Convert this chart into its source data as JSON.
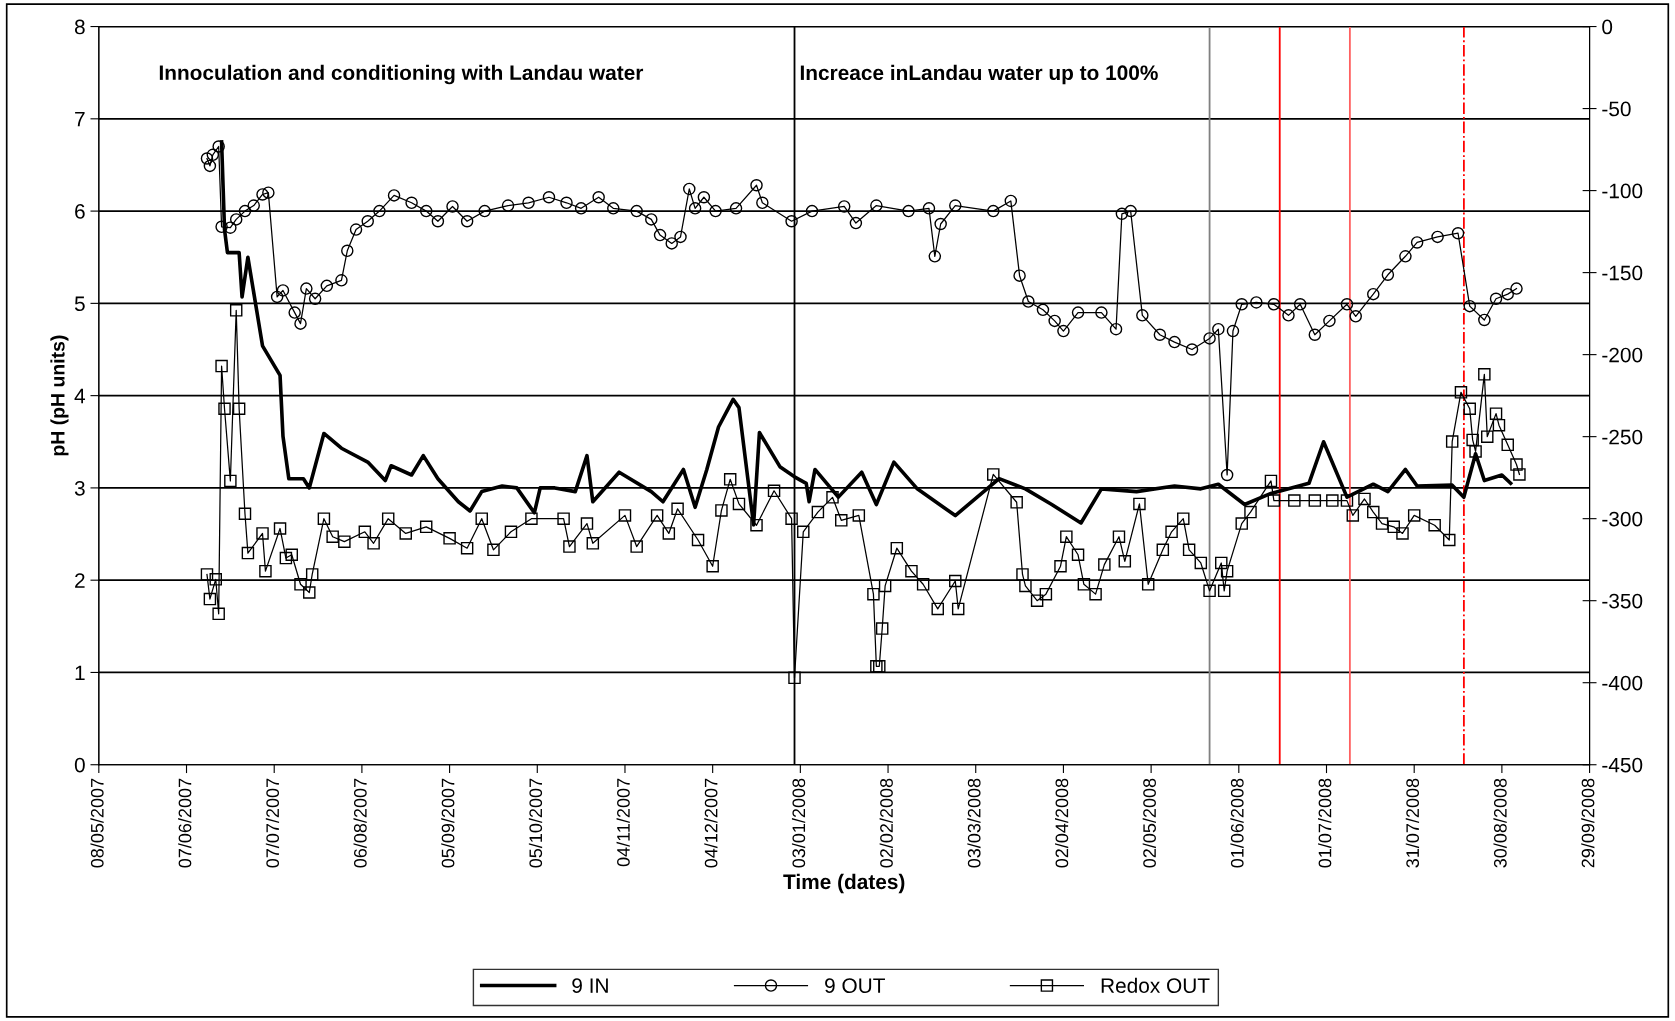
{
  "chart_data": {
    "type": "line",
    "xlabel": "Time (dates)",
    "ylabel": "pH (pH units)",
    "xlim": [
      "2007-05-08",
      "2008-09-29"
    ],
    "xticks": [
      {
        "value": "2007-05-08",
        "label": "08/05/2007"
      },
      {
        "value": "2007-06-07",
        "label": "07/06/2007"
      },
      {
        "value": "2007-07-07",
        "label": "07/07/2007"
      },
      {
        "value": "2007-08-06",
        "label": "06/08/2007"
      },
      {
        "value": "2007-09-05",
        "label": "05/09/2007"
      },
      {
        "value": "2007-10-05",
        "label": "05/10/2007"
      },
      {
        "value": "2007-11-04",
        "label": "04/11/2007"
      },
      {
        "value": "2007-12-04",
        "label": "04/12/2007"
      },
      {
        "value": "2008-01-03",
        "label": "03/01/2008"
      },
      {
        "value": "2008-02-02",
        "label": "02/02/2008"
      },
      {
        "value": "2008-03-03",
        "label": "03/03/2008"
      },
      {
        "value": "2008-04-02",
        "label": "02/04/2008"
      },
      {
        "value": "2008-05-02",
        "label": "02/05/2008"
      },
      {
        "value": "2008-06-01",
        "label": "01/06/2008"
      },
      {
        "value": "2008-07-01",
        "label": "01/07/2008"
      },
      {
        "value": "2008-07-31",
        "label": "31/07/2008"
      },
      {
        "value": "2008-08-30",
        "label": "30/08/2008"
      },
      {
        "value": "2008-09-29",
        "label": "29/09/2008"
      }
    ],
    "ylim": [
      0,
      8
    ],
    "yticks": [
      0,
      1,
      2,
      3,
      4,
      5,
      6,
      7,
      8
    ],
    "y2lim": [
      -450,
      0
    ],
    "y2ticks": [
      -450,
      -400,
      -350,
      -300,
      -250,
      -200,
      -150,
      -100,
      -50,
      0
    ],
    "grid": "y",
    "legend": "bottom",
    "annotations": [
      "Innoculation and conditioning with Landau water",
      "Increace inLandau water up to 100%"
    ],
    "ref_lines": [
      {
        "axis": "x",
        "value": "2008-01-01",
        "label": null,
        "color": "#000000",
        "line_style": "solid"
      },
      {
        "axis": "x",
        "value": "2008-05-22",
        "label": null,
        "color": "#808080",
        "line_style": "solid"
      },
      {
        "axis": "x",
        "value": "2008-06-15",
        "label": null,
        "color": "#ff0000",
        "line_style": "solid"
      },
      {
        "axis": "x",
        "value": "2008-07-09",
        "label": null,
        "color": "#ff6060",
        "line_style": "solid"
      },
      {
        "axis": "x",
        "value": "2008-08-17",
        "label": null,
        "color": "#ff0000",
        "line_style": "dashdot"
      }
    ],
    "series": [
      {
        "name": "9 IN",
        "color": "#000000",
        "marker": "none",
        "x": [
          "2007-06-19",
          "2007-06-20",
          "2007-06-21",
          "2007-06-25",
          "2007-06-26",
          "2007-06-28",
          "2007-07-03",
          "2007-07-09",
          "2007-07-10",
          "2007-07-12",
          "2007-07-17",
          "2007-07-19",
          "2007-07-24",
          "2007-07-30",
          "2007-08-08",
          "2007-08-14",
          "2007-08-16",
          "2007-08-23",
          "2007-08-27",
          "2007-09-01",
          "2007-09-08",
          "2007-09-12",
          "2007-09-16",
          "2007-09-23",
          "2007-09-28",
          "2007-10-04",
          "2007-10-06",
          "2007-10-11",
          "2007-10-18",
          "2007-10-22",
          "2007-10-24",
          "2007-11-02",
          "2007-11-13",
          "2007-11-17",
          "2007-11-24",
          "2007-11-28",
          "2007-12-02",
          "2007-12-06",
          "2007-12-11",
          "2007-12-13",
          "2007-12-18",
          "2007-12-20",
          "2007-12-27",
          "2008-01-01",
          "2008-01-05",
          "2008-01-06",
          "2008-01-08",
          "2008-01-16",
          "2008-01-24",
          "2008-01-29",
          "2008-02-04",
          "2008-02-12",
          "2008-02-25",
          "2008-03-11",
          "2008-03-20",
          "2008-03-29",
          "2008-04-08",
          "2008-04-15",
          "2008-04-27",
          "2008-05-10",
          "2008-05-19",
          "2008-05-25",
          "2008-06-03",
          "2008-06-12",
          "2008-06-25",
          "2008-06-30",
          "2008-07-08",
          "2008-07-17",
          "2008-07-22",
          "2008-07-28",
          "2008-08-01",
          "2008-08-13",
          "2008-08-17",
          "2008-08-21",
          "2008-08-24",
          "2008-08-30",
          "2008-09-02"
        ],
        "values": [
          6.75,
          5.8,
          5.55,
          5.55,
          5.07,
          5.5,
          4.54,
          4.22,
          3.56,
          3.1,
          3.1,
          3.0,
          3.59,
          3.43,
          3.28,
          3.08,
          3.24,
          3.14,
          3.35,
          3.1,
          2.85,
          2.75,
          2.96,
          3.02,
          3.0,
          2.73,
          3.0,
          3.0,
          2.96,
          3.35,
          2.85,
          3.17,
          2.96,
          2.85,
          3.2,
          2.79,
          3.2,
          3.66,
          3.96,
          3.87,
          2.6,
          3.6,
          3.23,
          3.12,
          3.05,
          2.85,
          3.2,
          2.9,
          3.17,
          2.82,
          3.28,
          2.99,
          2.7,
          3.1,
          2.99,
          2.82,
          2.62,
          2.99,
          2.96,
          3.02,
          2.99,
          3.04,
          2.82,
          2.94,
          3.05,
          3.5,
          2.9,
          3.04,
          2.96,
          3.2,
          3.02,
          3.03,
          2.9,
          3.37,
          3.08,
          3.14,
          3.05
        ]
      },
      {
        "name": "9 OUT",
        "color": "#000000",
        "marker": "circle",
        "x": [
          "2007-06-14",
          "2007-06-15",
          "2007-06-16",
          "2007-06-18",
          "2007-06-19",
          "2007-06-22",
          "2007-06-24",
          "2007-06-27",
          "2007-06-30",
          "2007-07-03",
          "2007-07-05",
          "2007-07-08",
          "2007-07-10",
          "2007-07-14",
          "2007-07-16",
          "2007-07-18",
          "2007-07-21",
          "2007-07-25",
          "2007-07-30",
          "2007-08-01",
          "2007-08-04",
          "2007-08-08",
          "2007-08-12",
          "2007-08-17",
          "2007-08-23",
          "2007-08-28",
          "2007-09-01",
          "2007-09-06",
          "2007-09-11",
          "2007-09-17",
          "2007-09-25",
          "2007-10-02",
          "2007-10-09",
          "2007-10-15",
          "2007-10-20",
          "2007-10-26",
          "2007-10-31",
          "2007-11-08",
          "2007-11-13",
          "2007-11-16",
          "2007-11-20",
          "2007-11-23",
          "2007-11-26",
          "2007-11-28",
          "2007-12-01",
          "2007-12-05",
          "2007-12-12",
          "2007-12-19",
          "2007-12-21",
          "2007-12-31",
          "2008-01-07",
          "2008-01-18",
          "2008-01-22",
          "2008-01-29",
          "2008-02-09",
          "2008-02-16",
          "2008-02-18",
          "2008-02-20",
          "2008-02-25",
          "2008-03-09",
          "2008-03-15",
          "2008-03-18",
          "2008-03-21",
          "2008-03-26",
          "2008-03-30",
          "2008-04-02",
          "2008-04-07",
          "2008-04-15",
          "2008-04-20",
          "2008-04-22",
          "2008-04-25",
          "2008-04-29",
          "2008-05-05",
          "2008-05-10",
          "2008-05-16",
          "2008-05-22",
          "2008-05-25",
          "2008-05-28",
          "2008-05-30",
          "2008-06-02",
          "2008-06-07",
          "2008-06-13",
          "2008-06-18",
          "2008-06-22",
          "2008-06-27",
          "2008-07-02",
          "2008-07-08",
          "2008-07-11",
          "2008-07-17",
          "2008-07-22",
          "2008-07-28",
          "2008-08-01",
          "2008-08-08",
          "2008-08-15",
          "2008-08-19",
          "2008-08-24",
          "2008-08-28",
          "2008-09-01",
          "2008-09-04"
        ],
        "values": [
          6.57,
          6.49,
          6.61,
          6.7,
          5.83,
          5.82,
          5.91,
          6.0,
          6.06,
          6.18,
          6.2,
          5.07,
          5.14,
          4.9,
          4.78,
          5.16,
          5.05,
          5.19,
          5.25,
          5.57,
          5.8,
          5.89,
          6.0,
          6.17,
          6.09,
          6.0,
          5.89,
          6.05,
          5.89,
          6.0,
          6.06,
          6.09,
          6.15,
          6.09,
          6.03,
          6.15,
          6.03,
          6.0,
          5.91,
          5.74,
          5.65,
          5.72,
          6.24,
          6.03,
          6.15,
          6.0,
          6.03,
          6.28,
          6.09,
          5.89,
          6.0,
          6.05,
          5.87,
          6.06,
          6.0,
          6.03,
          5.51,
          5.86,
          6.06,
          6.0,
          6.11,
          5.3,
          5.02,
          4.93,
          4.81,
          4.7,
          4.9,
          4.9,
          4.72,
          5.97,
          6.0,
          4.87,
          4.66,
          4.58,
          4.5,
          4.62,
          4.72,
          3.14,
          4.7,
          4.99,
          5.01,
          4.99,
          4.87,
          4.99,
          4.66,
          4.81,
          4.99,
          4.86,
          5.1,
          5.31,
          5.51,
          5.66,
          5.72,
          5.76,
          4.97,
          4.82,
          5.05,
          5.1,
          5.16
        ]
      },
      {
        "name": "Redox OUT",
        "color": "#000000",
        "marker": "square",
        "axis": "y2",
        "x": [
          "2007-06-14",
          "2007-06-15",
          "2007-06-17",
          "2007-06-18",
          "2007-06-19",
          "2007-06-20",
          "2007-06-22",
          "2007-06-24",
          "2007-06-25",
          "2007-06-27",
          "2007-06-28",
          "2007-07-03",
          "2007-07-04",
          "2007-07-09",
          "2007-07-11",
          "2007-07-13",
          "2007-07-16",
          "2007-07-19",
          "2007-07-20",
          "2007-07-24",
          "2007-07-27",
          "2007-07-31",
          "2007-08-07",
          "2007-08-10",
          "2007-08-15",
          "2007-08-21",
          "2007-08-28",
          "2007-09-05",
          "2007-09-11",
          "2007-09-16",
          "2007-09-20",
          "2007-09-26",
          "2007-10-03",
          "2007-10-14",
          "2007-10-16",
          "2007-10-22",
          "2007-10-24",
          "2007-11-04",
          "2007-11-08",
          "2007-11-15",
          "2007-11-19",
          "2007-11-22",
          "2007-11-29",
          "2007-12-04",
          "2007-12-07",
          "2007-12-10",
          "2007-12-13",
          "2007-12-19",
          "2007-12-25",
          "2007-12-31",
          "2008-01-01",
          "2008-01-04",
          "2008-01-09",
          "2008-01-14",
          "2008-01-17",
          "2008-01-23",
          "2008-01-28",
          "2008-01-29",
          "2008-01-30",
          "2008-01-31",
          "2008-02-01",
          "2008-02-05",
          "2008-02-10",
          "2008-02-14",
          "2008-02-19",
          "2008-02-25",
          "2008-02-26",
          "2008-03-09",
          "2008-03-17",
          "2008-03-19",
          "2008-03-20",
          "2008-03-24",
          "2008-03-27",
          "2008-04-01",
          "2008-04-03",
          "2008-04-07",
          "2008-04-09",
          "2008-04-13",
          "2008-04-16",
          "2008-04-21",
          "2008-04-23",
          "2008-04-28",
          "2008-05-01",
          "2008-05-06",
          "2008-05-09",
          "2008-05-13",
          "2008-05-15",
          "2008-05-19",
          "2008-05-22",
          "2008-05-26",
          "2008-05-27",
          "2008-05-28",
          "2008-06-02",
          "2008-06-05",
          "2008-06-12",
          "2008-06-13",
          "2008-06-20",
          "2008-06-27",
          "2008-07-03",
          "2008-07-08",
          "2008-07-10",
          "2008-07-14",
          "2008-07-17",
          "2008-07-20",
          "2008-07-24",
          "2008-07-27",
          "2008-07-31",
          "2008-08-07",
          "2008-08-12",
          "2008-08-13",
          "2008-08-16",
          "2008-08-19",
          "2008-08-20",
          "2008-08-21",
          "2008-08-24",
          "2008-08-25",
          "2008-08-28",
          "2008-08-29",
          "2008-09-01",
          "2008-09-04",
          "2008-09-05"
        ],
        "values": [
          -334,
          -349,
          -337,
          -358,
          -207,
          -233,
          -277,
          -173,
          -233,
          -297,
          -321,
          -309,
          -332,
          -306,
          -324,
          -322,
          -340,
          -345,
          -334,
          -300,
          -311,
          -314,
          -308,
          -315,
          -300,
          -309,
          -305,
          -312,
          -318,
          -300,
          -319,
          -308,
          -300,
          -300,
          -317,
          -303,
          -315,
          -298,
          -317,
          -298,
          -309,
          -294,
          -313,
          -329,
          -295,
          -276,
          -291,
          -304,
          -283,
          -300,
          -397,
          -308,
          -296,
          -287,
          -301,
          -298,
          -346,
          -390,
          -390,
          -367,
          -341,
          -318,
          -332,
          -340,
          -355,
          -338,
          -355,
          -273,
          -290,
          -334,
          -341,
          -350,
          -346,
          -329,
          -311,
          -322,
          -340,
          -346,
          -328,
          -311,
          -326,
          -291,
          -340,
          -319,
          -308,
          -300,
          -319,
          -327,
          -344,
          -327,
          -344,
          -332,
          -303,
          -296,
          -277,
          -289,
          -289,
          -289,
          -289,
          -289,
          -298,
          -288,
          -296,
          -303,
          -305,
          -309,
          -298,
          -304,
          -313,
          -253,
          -223,
          -233,
          -252,
          -259,
          -212,
          -250,
          -236,
          -243,
          -255,
          -267,
          -273
        ]
      }
    ]
  }
}
